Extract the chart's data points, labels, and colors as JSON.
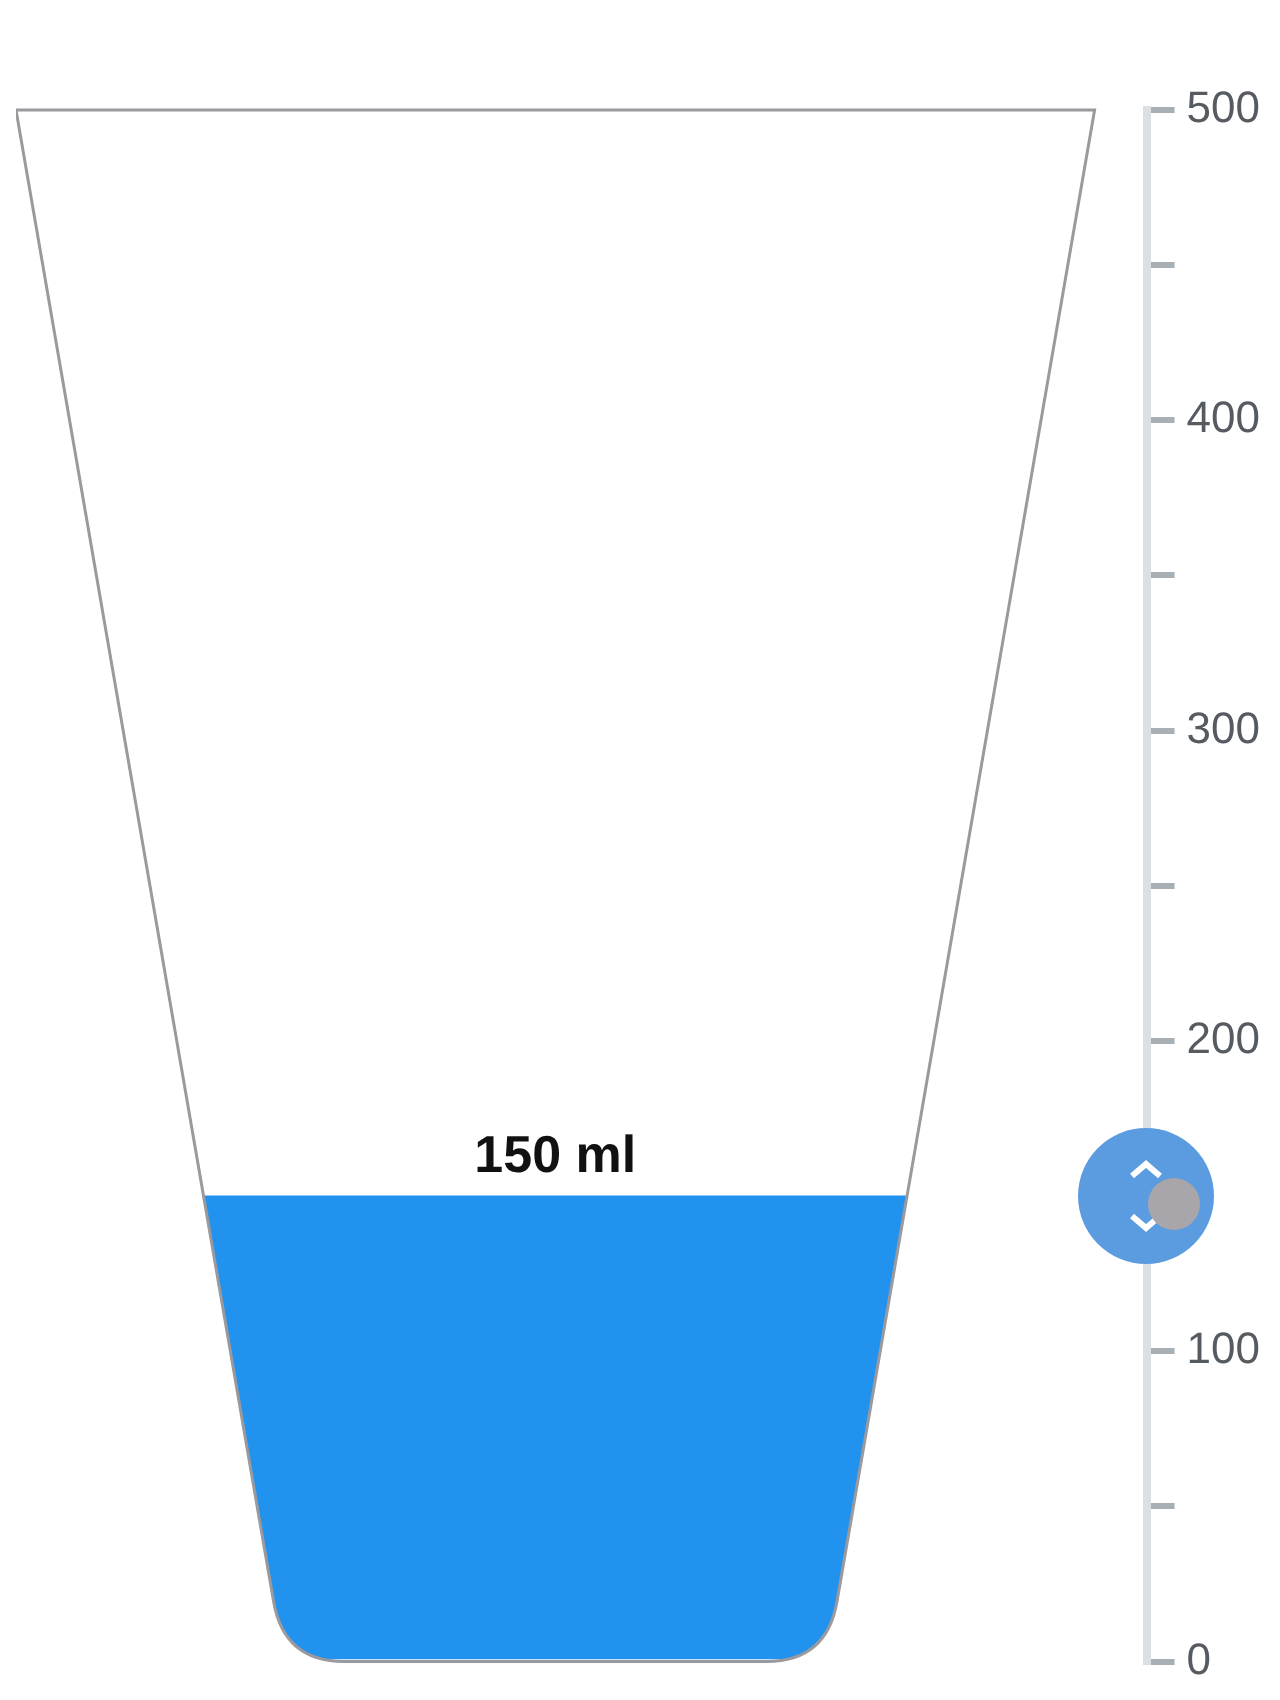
{
  "chart_data": {
    "type": "bar",
    "categories": [
      null
    ],
    "values": [
      150
    ],
    "value_labels": [
      "150 ml"
    ],
    "color": "#2192ee",
    "ylim": [
      0,
      500
    ],
    "yticks": [
      0,
      {
        "value": 50,
        "label": null
      },
      100,
      {
        "value": 150,
        "label": null
      },
      200,
      {
        "value": 250,
        "label": null
      },
      300,
      {
        "value": 350,
        "label": null
      },
      400,
      {
        "value": 450,
        "label": null
      },
      500
    ],
    "grid": false,
    "legend": false
  }
}
